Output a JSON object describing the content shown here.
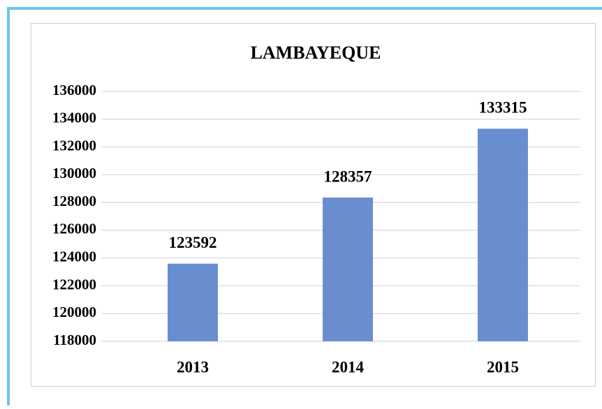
{
  "chart_data": {
    "type": "bar",
    "title": "LAMBAYEQUE",
    "categories": [
      "2013",
      "2014",
      "2015"
    ],
    "values": [
      123592,
      128357,
      133315
    ],
    "color": "#698ed0",
    "ylim": [
      118000,
      136000
    ],
    "yticks": [
      118000,
      120000,
      122000,
      124000,
      126000,
      128000,
      130000,
      132000,
      134000,
      136000
    ],
    "grid": true
  }
}
